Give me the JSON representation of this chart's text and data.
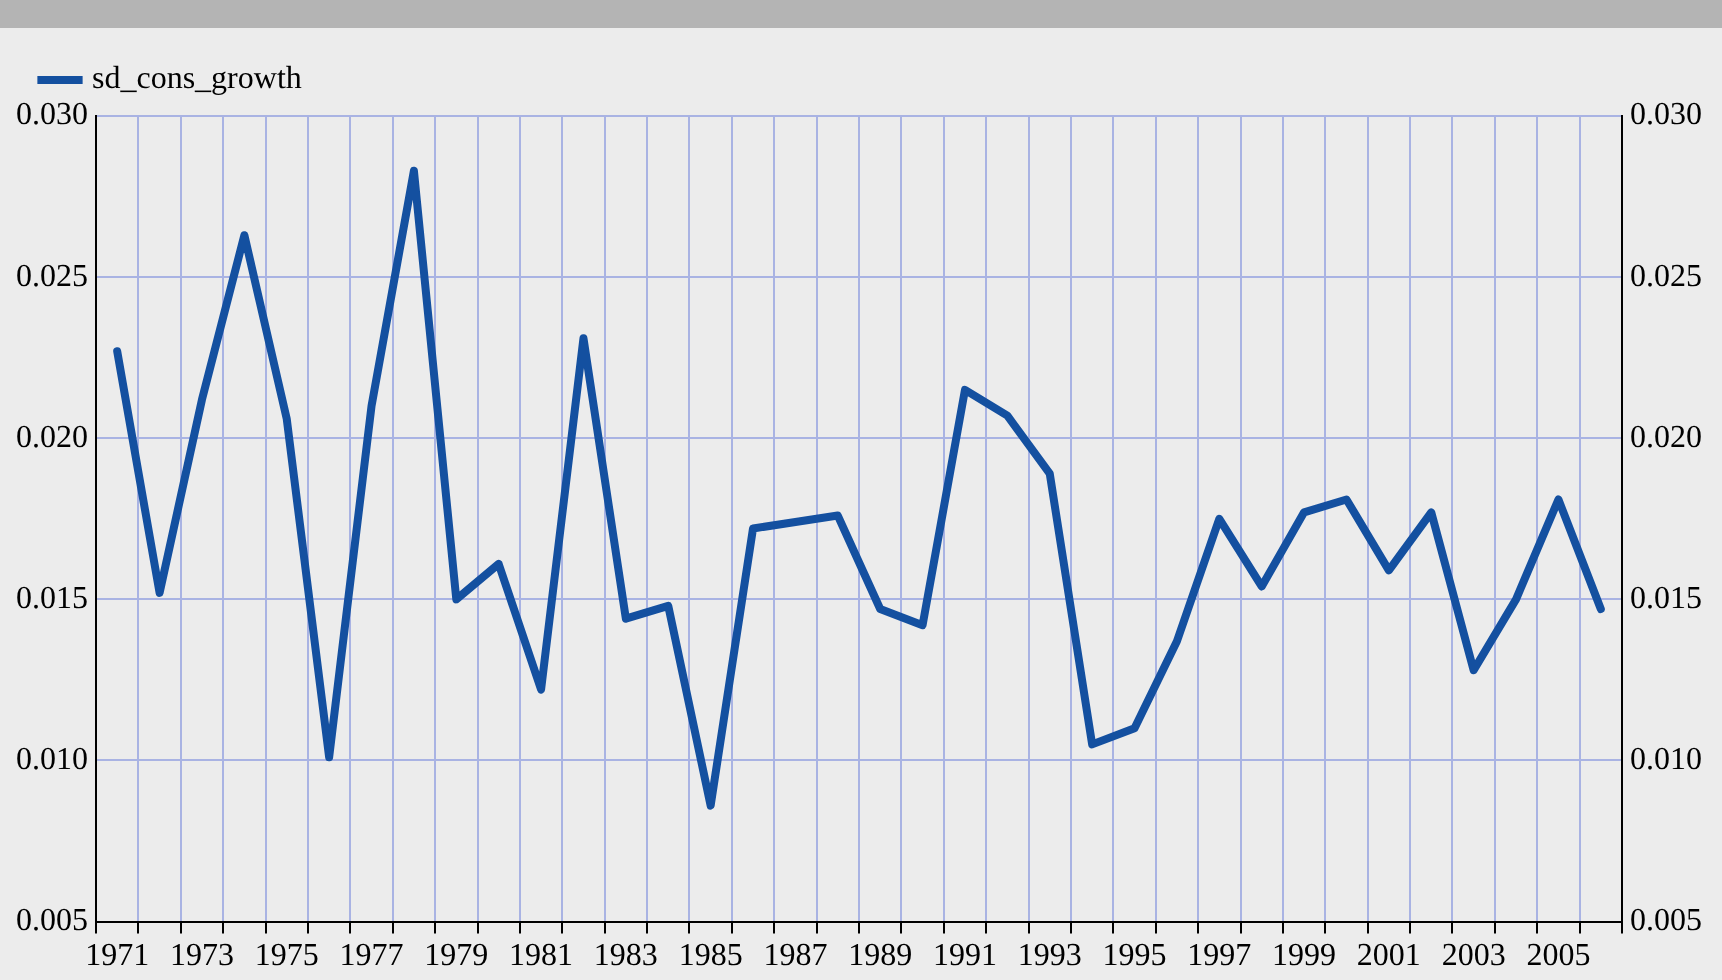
{
  "chart_data": {
    "type": "line",
    "categories": [
      "1971",
      null,
      "1973",
      null,
      "1975",
      null,
      "1977",
      null,
      "1979",
      null,
      "1981",
      null,
      "1983",
      null,
      "1985",
      null,
      "1987",
      null,
      "1989",
      null,
      "1991",
      null,
      "1993",
      null,
      "1995",
      null,
      "1997",
      null,
      "1999",
      null,
      "2001",
      null,
      "2003",
      null,
      "2005",
      null
    ],
    "series": [
      {
        "name": "sd_cons_growth",
        "color": "#1450a0",
        "values": [
          0.0227,
          0.0152,
          0.0212,
          0.0263,
          0.0206,
          0.0101,
          0.021,
          0.0283,
          0.015,
          0.0161,
          0.0122,
          0.0231,
          0.0144,
          0.0148,
          0.0086,
          0.0172,
          0.0174,
          0.0176,
          0.0147,
          0.0142,
          0.0215,
          0.0207,
          0.0189,
          0.0105,
          0.011,
          0.0137,
          0.0175,
          0.0154,
          0.0177,
          0.0181,
          0.0159,
          0.0177,
          0.0128,
          0.015,
          0.0181,
          0.0147
        ]
      }
    ],
    "ylim": [
      0.005,
      0.03
    ],
    "yticks": [
      0.005,
      {
        "value": 0.01,
        "label": "0.010"
      },
      0.015,
      {
        "value": 0.02,
        "label": "0.020"
      },
      0.025,
      {
        "value": 0.03,
        "label": "0.030"
      }
    ],
    "y2lim": [
      0.005,
      0.03
    ],
    "y2ticks": [
      0.005,
      {
        "value": 0.01,
        "label": "0.010"
      },
      0.015,
      {
        "value": 0.02,
        "label": "0.020"
      },
      0.025,
      {
        "value": 0.03,
        "label": "0.030"
      }
    ],
    "grid": true,
    "legend": "top left",
    "marker": "none",
    "line_style": "solid"
  }
}
